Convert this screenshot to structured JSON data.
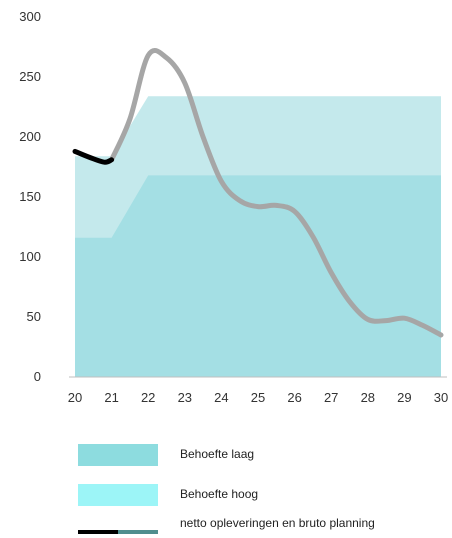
{
  "chart_data": {
    "type": "area",
    "x": [
      20,
      21,
      22,
      23,
      24,
      25,
      26,
      27,
      28,
      29,
      30
    ],
    "ylim": [
      0,
      300
    ],
    "yticks": [
      0,
      50,
      100,
      150,
      200,
      250,
      300
    ],
    "grid": false,
    "legend_position": "bottom",
    "series": [
      {
        "name": "Behoefte laag",
        "kind": "area",
        "color": "#a4dfe4",
        "values": [
          116,
          116,
          168,
          168,
          168,
          168,
          168,
          168,
          168,
          168,
          168
        ]
      },
      {
        "name": "Behoefte hoog",
        "kind": "area",
        "color": "#c4e9ec",
        "values": [
          184,
          184,
          234,
          234,
          234,
          234,
          234,
          234,
          234,
          234,
          234
        ]
      },
      {
        "name": "netto opleveringen en bruto planning",
        "kind": "line",
        "segments": [
          {
            "label": "netto opleveringen",
            "color": "#000000",
            "points": [
              [
                20,
                188
              ],
              [
                20.4,
                183
              ],
              [
                20.8,
                179
              ],
              [
                21,
                181
              ]
            ]
          },
          {
            "label": "bruto planning",
            "color": "#a6a6a6",
            "points": [
              [
                21,
                181
              ],
              [
                21.5,
                215
              ],
              [
                22,
                268
              ],
              [
                22.5,
                266
              ],
              [
                23,
                245
              ],
              [
                23.5,
                200
              ],
              [
                24,
                163
              ],
              [
                24.5,
                147
              ],
              [
                25,
                142
              ],
              [
                25.5,
                143
              ],
              [
                26,
                138
              ],
              [
                26.5,
                117
              ],
              [
                27,
                87
              ],
              [
                27.5,
                63
              ],
              [
                28,
                48
              ],
              [
                28.5,
                47
              ],
              [
                29,
                49
              ],
              [
                29.5,
                43
              ],
              [
                30,
                35
              ]
            ]
          }
        ]
      }
    ]
  },
  "legend": {
    "items": [
      {
        "label": "Behoefte laag",
        "swatch": "area",
        "color": "#8ddcdf"
      },
      {
        "label": "Behoefte hoog",
        "swatch": "area",
        "color": "#9cf5f7"
      },
      {
        "label": "netto opleveringen  en bruto planning",
        "swatch": "line",
        "colors": [
          "#000000",
          "#4f8e8e"
        ]
      }
    ]
  }
}
